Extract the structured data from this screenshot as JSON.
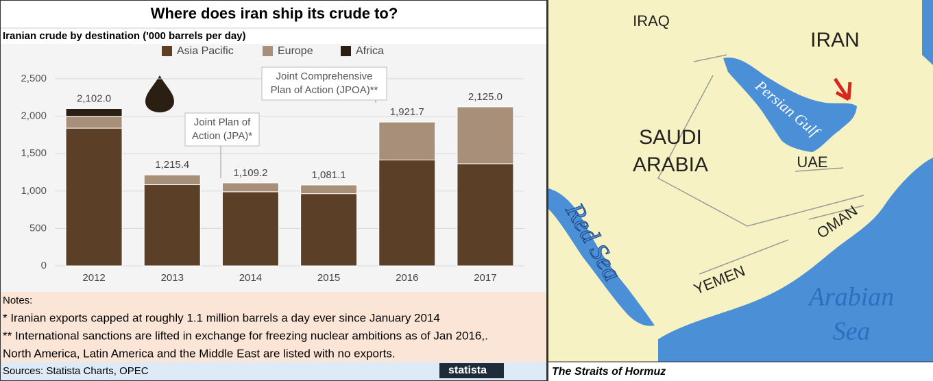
{
  "chart_data": {
    "type": "stacked-bar",
    "title": "Where does iran ship its crude to?",
    "subtitle": "Iranian crude by destination ('000 barrels per day)",
    "categories": [
      "2012",
      "2013",
      "2014",
      "2015",
      "2016",
      "2017"
    ],
    "series": [
      {
        "name": "Asia  Pacific",
        "color": "#5b3f27",
        "values": [
          1840,
          1085,
          990,
          965,
          1415,
          1365
        ]
      },
      {
        "name": "Europe",
        "color": "#a88f7a",
        "values": [
          160,
          130,
          119,
          116,
          507,
          760
        ]
      },
      {
        "name": "Africa",
        "color": "#2b1f14",
        "values": [
          102,
          0,
          0,
          0,
          0,
          0
        ]
      }
    ],
    "totals": [
      2102.0,
      1215.4,
      1109.2,
      1081.1,
      1921.7,
      2125.0
    ],
    "value_labels": [
      "2,102.0",
      "1,215.4",
      "1,109.2",
      "1,081.1",
      "1,921.7",
      "2,125.0"
    ],
    "ylim": [
      0,
      2500
    ],
    "yticks": [
      0,
      500,
      {
        "value": 1000,
        "label": "1,000"
      },
      {
        "value": 1500,
        "label": "1,500"
      },
      {
        "value": 2000,
        "label": "2,000"
      },
      {
        "value": 2500,
        "label": "2,500"
      }
    ],
    "grid": true,
    "annotations": [
      {
        "lines": [
          "Joint Plan of",
          "Action (JPA)*"
        ]
      },
      {
        "lines": [
          "Joint Comprehensive",
          "Plan of Action (JPOA)**"
        ]
      }
    ]
  },
  "notes": [
    "Notes:",
    "* Iranian exports capped at roughly 1.1 million barrels a day ever since January 2014",
    "** International sanctions are lifted in exchange for freezing nuclear ambitions as of Jan 2016,.",
    "North America, Latin America and the Middle East are listed with no exports."
  ],
  "sources": "Sources: Statista Charts, OPEC",
  "logo": "statista",
  "map": {
    "caption": "The Straits of Hormuz",
    "labels": [
      "IRAQ",
      "IRAN",
      "SAUDI",
      "ARABIA",
      "UAE",
      "OMAN",
      "YEMEN",
      "Persian Gulf",
      "Red Sea",
      "Arabian",
      "Sea"
    ]
  }
}
